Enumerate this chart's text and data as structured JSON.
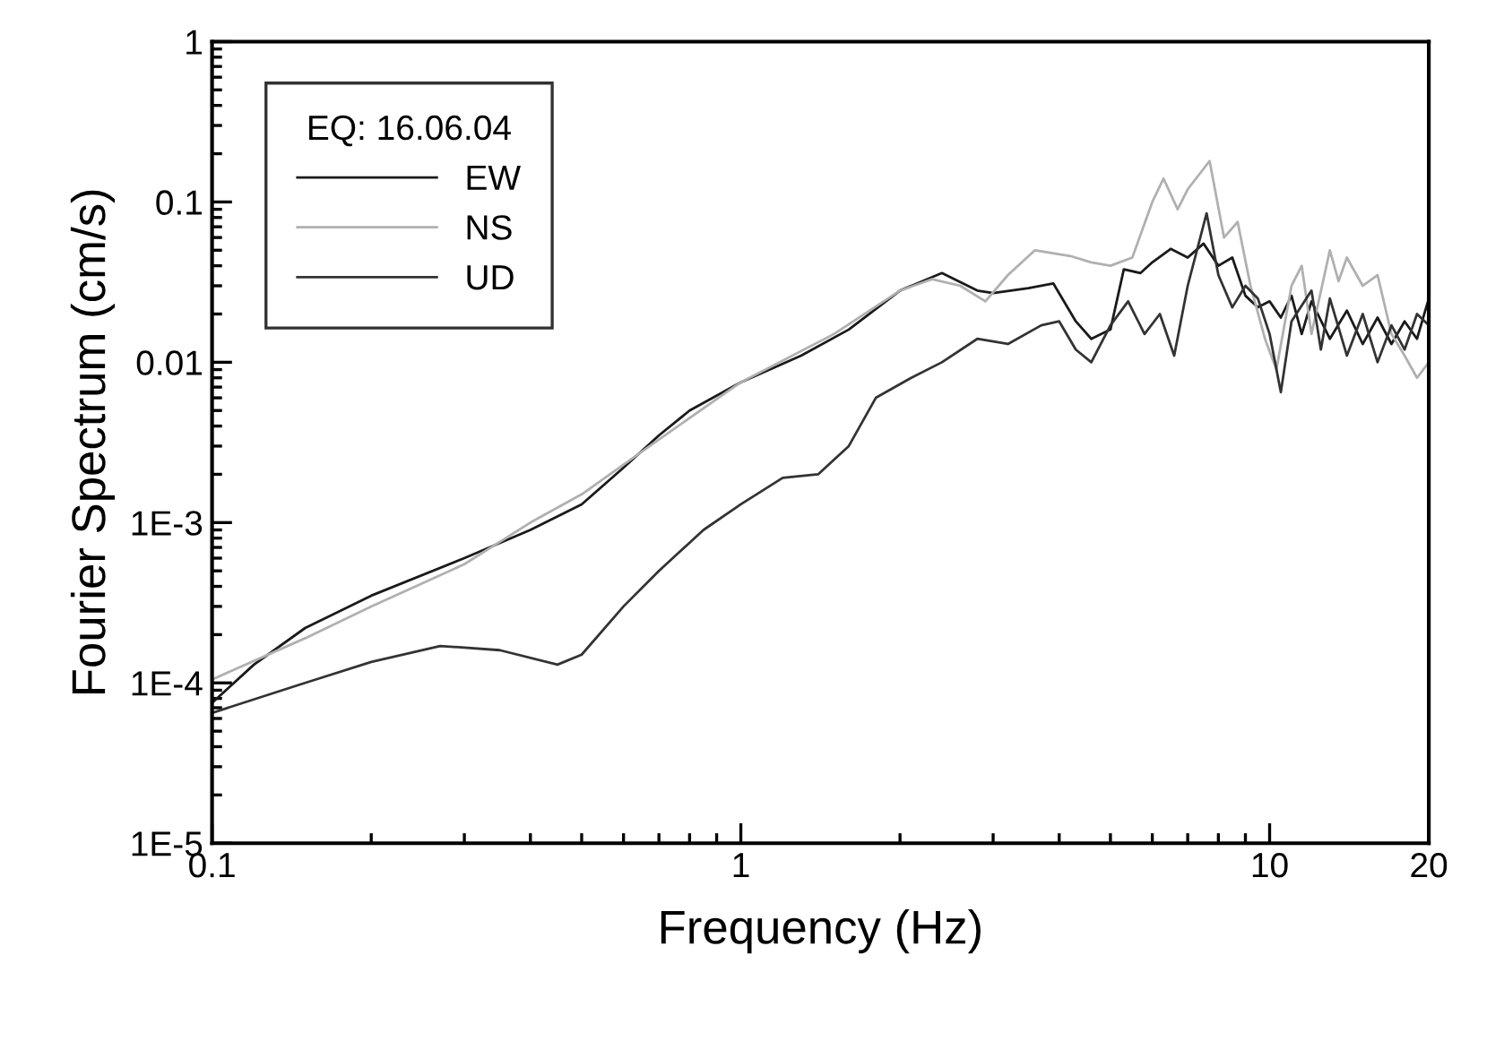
{
  "chart_data": {
    "type": "line",
    "xlabel": "Frequency (Hz)",
    "ylabel": "Fourier Spectrum (cm/s)",
    "legend_title": "EQ: 16.06.04",
    "legend": "top left",
    "log": "xy",
    "grid": false,
    "marker": "none",
    "line_style": "solid",
    "xlim": [
      0.1,
      20
    ],
    "xticks": [
      0.1,
      1,
      10,
      20
    ],
    "ylim": [
      1e-05,
      1
    ],
    "yticks": [
      {
        "value": 1e-05,
        "label": "1E-5"
      },
      {
        "value": 0.0001,
        "label": "1E-4"
      },
      {
        "value": 0.001,
        "label": "1E-3"
      },
      0.01,
      0.1,
      1
    ],
    "series": [
      {
        "name": "EW",
        "color": "#1a1a1a",
        "x": [
          0.1,
          0.12,
          0.15,
          0.2,
          0.3,
          0.4,
          0.5,
          0.6,
          0.7,
          0.8,
          1.0,
          1.3,
          1.6,
          2.0,
          2.4,
          2.8,
          3.0,
          3.5,
          3.9,
          4.3,
          4.6,
          5.0,
          5.3,
          5.7,
          6.0,
          6.5,
          7.0,
          7.5,
          8,
          8.5,
          9,
          9.5,
          10,
          10.5,
          11,
          11.5,
          12,
          13,
          14,
          15,
          16,
          17,
          18,
          19,
          20
        ],
        "values": [
          7.5e-05,
          0.00013,
          0.00022,
          0.00035,
          0.0006,
          0.0009,
          0.0013,
          0.0022,
          0.0035,
          0.005,
          0.0075,
          0.011,
          0.016,
          0.028,
          0.036,
          0.028,
          0.027,
          0.029,
          0.031,
          0.018,
          0.014,
          0.016,
          0.038,
          0.036,
          0.042,
          0.051,
          0.045,
          0.055,
          0.04,
          0.045,
          0.026,
          0.022,
          0.024,
          0.019,
          0.026,
          0.015,
          0.024,
          0.014,
          0.021,
          0.013,
          0.019,
          0.013,
          0.018,
          0.014,
          0.025
        ]
      },
      {
        "name": "NS",
        "color": "#b0b0b0",
        "x": [
          0.1,
          0.15,
          0.2,
          0.3,
          0.4,
          0.5,
          0.7,
          1,
          1.5,
          2,
          2.3,
          2.6,
          2.9,
          3.2,
          3.6,
          4.2,
          4.6,
          5.0,
          5.5,
          6.0,
          6.3,
          6.7,
          7.0,
          7.7,
          8.2,
          8.7,
          9.2,
          9.8,
          10.3,
          11,
          11.5,
          12,
          13,
          13.5,
          14,
          15,
          16,
          17,
          18,
          19,
          20
        ],
        "values": [
          0.000105,
          0.00019,
          0.0003,
          0.00055,
          0.001,
          0.0015,
          0.0033,
          0.0075,
          0.015,
          0.028,
          0.033,
          0.03,
          0.024,
          0.035,
          0.05,
          0.046,
          0.042,
          0.04,
          0.045,
          0.1,
          0.14,
          0.09,
          0.12,
          0.18,
          0.06,
          0.075,
          0.03,
          0.014,
          0.009,
          0.03,
          0.04,
          0.015,
          0.05,
          0.032,
          0.045,
          0.03,
          0.035,
          0.015,
          0.011,
          0.008,
          0.01
        ]
      },
      {
        "name": "UD",
        "color": "#333333",
        "x": [
          0.1,
          0.15,
          0.2,
          0.27,
          0.35,
          0.45,
          0.5,
          0.6,
          0.7,
          0.85,
          1.0,
          1.2,
          1.4,
          1.6,
          1.8,
          2.1,
          2.4,
          2.8,
          3.2,
          3.7,
          4.0,
          4.3,
          4.6,
          5.0,
          5.4,
          5.8,
          6.2,
          6.6,
          7.0,
          7.6,
          8.0,
          8.5,
          9,
          9.5,
          10,
          10.5,
          11,
          12,
          12.5,
          13,
          14,
          15,
          16,
          17,
          18,
          19,
          20
        ],
        "values": [
          6.5e-05,
          0.0001,
          0.000135,
          0.00017,
          0.00016,
          0.00013,
          0.00015,
          0.0003,
          0.0005,
          0.0009,
          0.0013,
          0.0019,
          0.002,
          0.003,
          0.006,
          0.008,
          0.01,
          0.014,
          0.013,
          0.017,
          0.018,
          0.012,
          0.01,
          0.017,
          0.024,
          0.015,
          0.02,
          0.011,
          0.03,
          0.085,
          0.035,
          0.022,
          0.03,
          0.025,
          0.015,
          0.0065,
          0.018,
          0.028,
          0.012,
          0.025,
          0.011,
          0.02,
          0.01,
          0.017,
          0.012,
          0.02,
          0.017
        ]
      }
    ]
  }
}
